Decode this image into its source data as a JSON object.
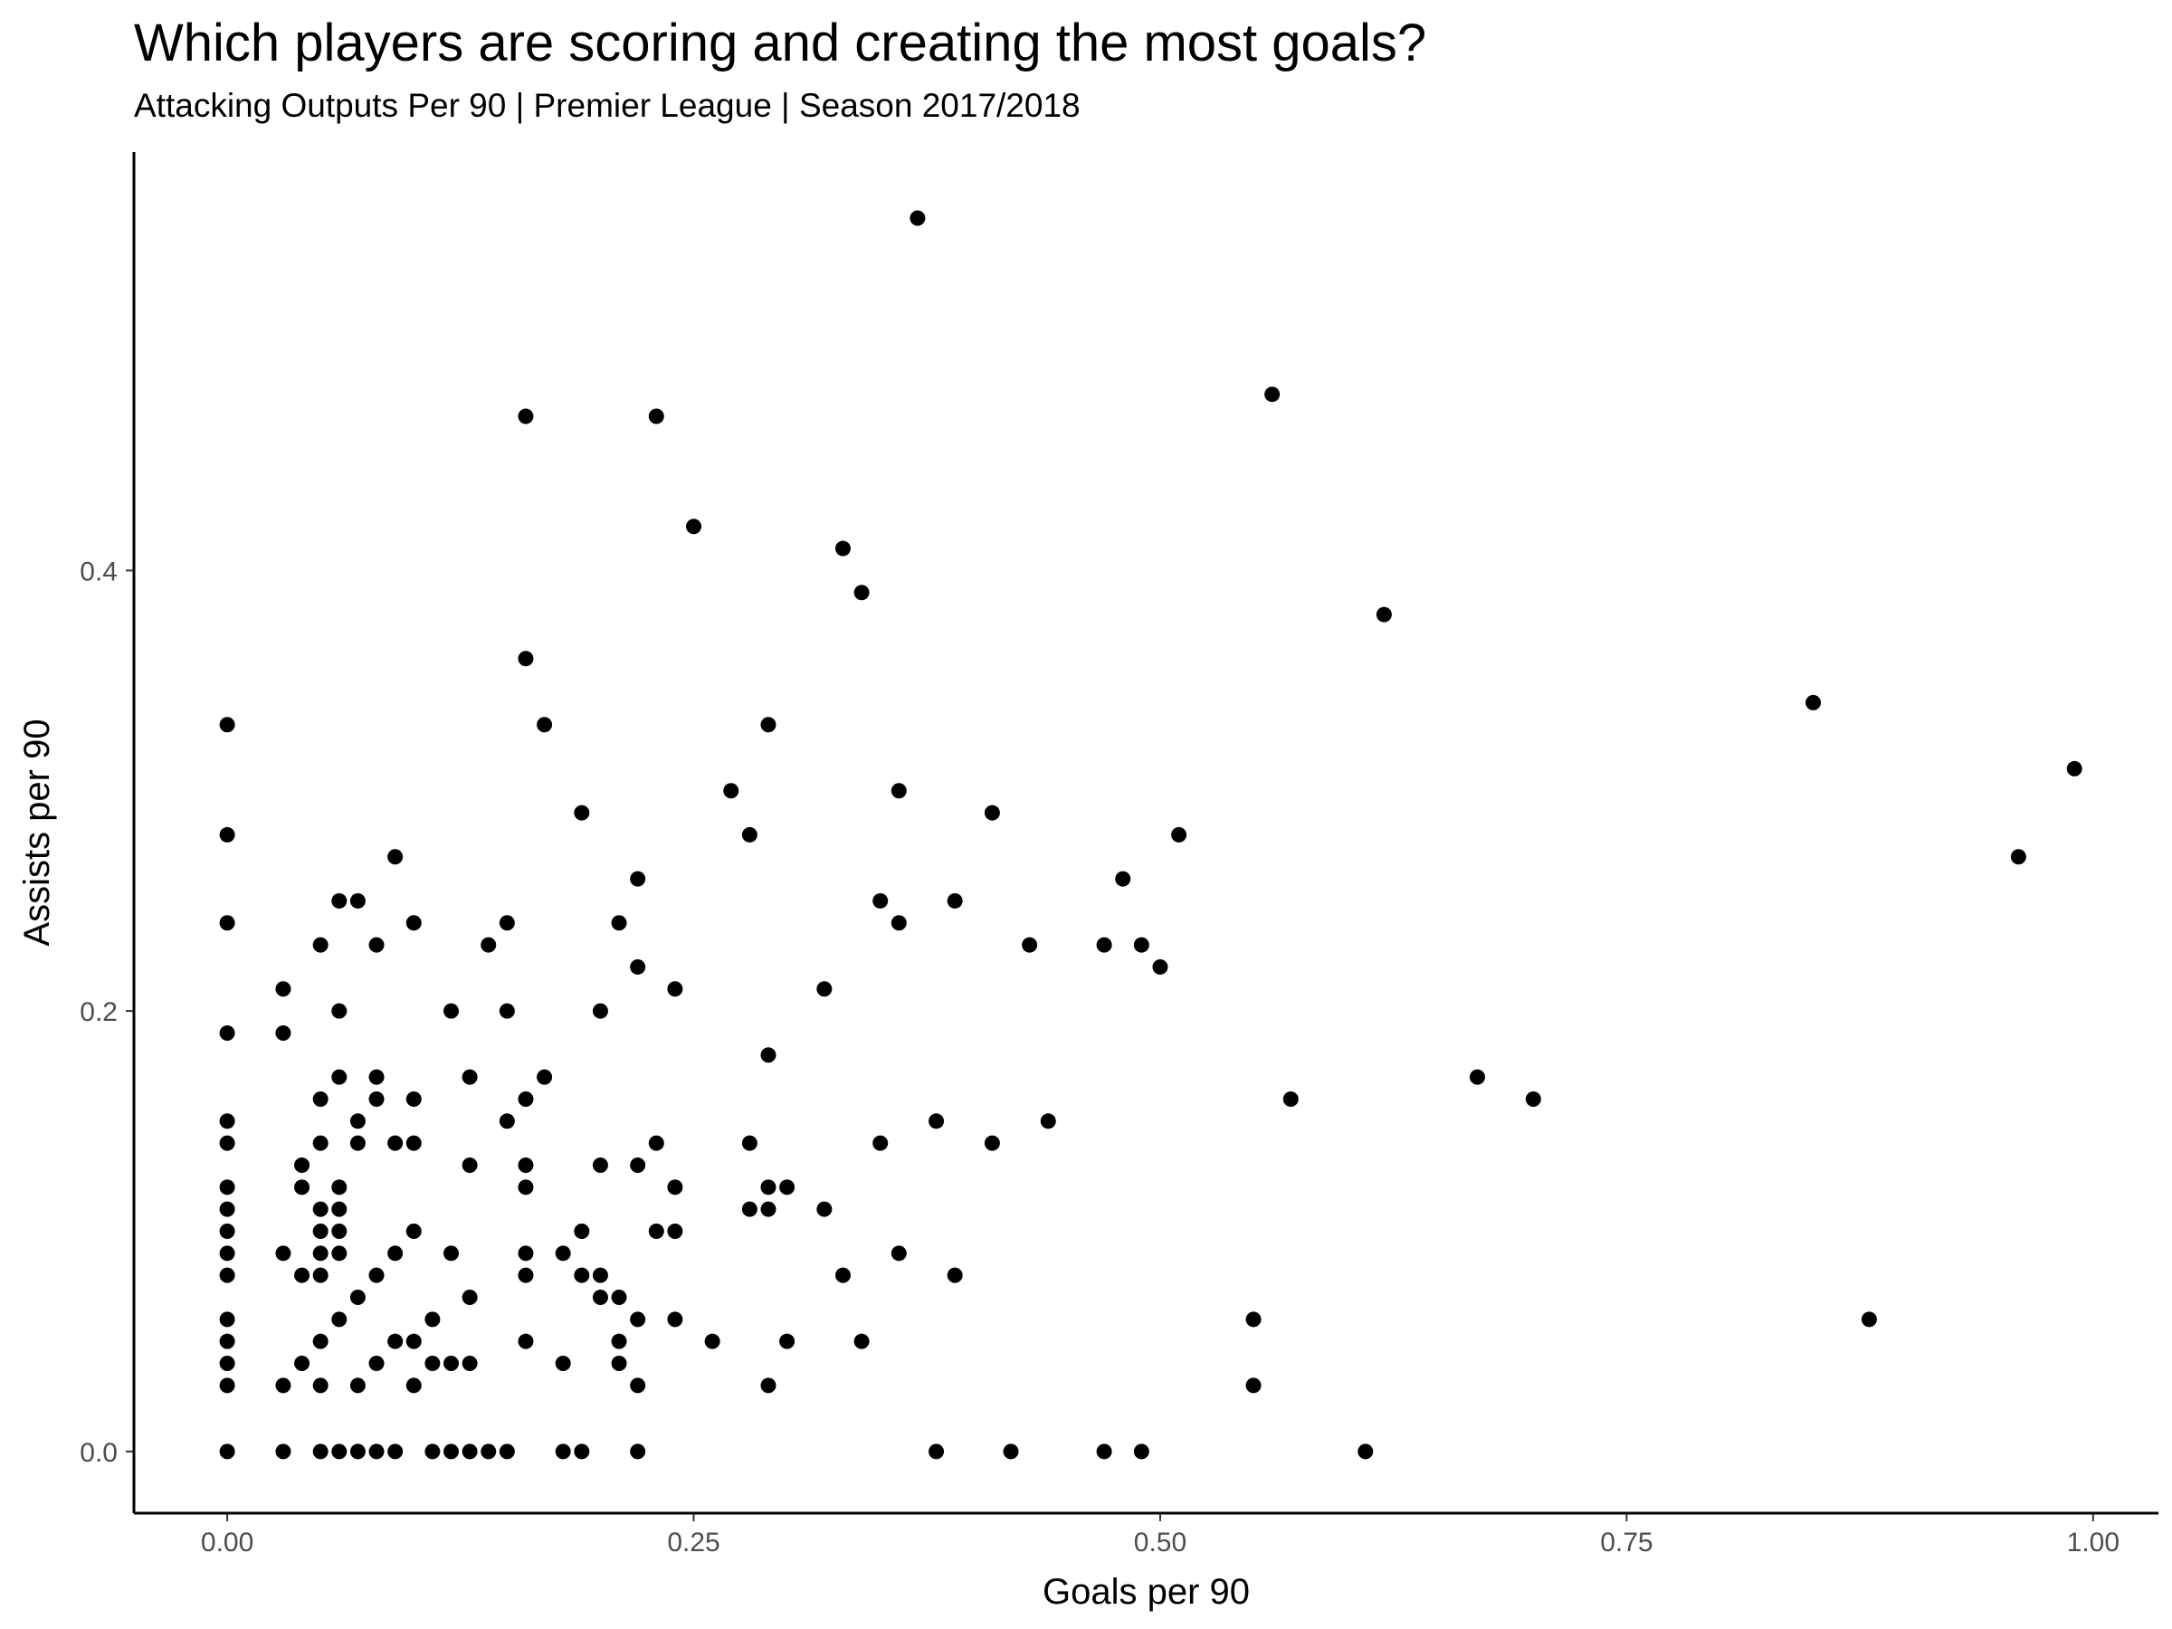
{
  "chart_data": {
    "type": "scatter",
    "title": "Which players are scoring and creating the most goals?",
    "subtitle": "Attacking Outputs Per 90 | Premier League | Season 2017/2018",
    "xlabel": "Goals per 90",
    "ylabel": "Assists per 90",
    "xlim": [
      -0.05,
      1.035
    ],
    "ylim": [
      -0.028,
      0.59
    ],
    "x_ticks": [
      0.0,
      0.25,
      0.5,
      0.75,
      1.0
    ],
    "x_tick_labels": [
      "0.00",
      "0.25",
      "0.50",
      "0.75",
      "1.00"
    ],
    "y_ticks": [
      0.0,
      0.2,
      0.4
    ],
    "y_tick_labels": [
      "0.0",
      "0.2",
      "0.4"
    ],
    "grid": false,
    "point_color": "#000000",
    "points": [
      [
        0.37,
        0.56
      ],
      [
        0.56,
        0.48
      ],
      [
        0.16,
        0.47
      ],
      [
        0.23,
        0.47
      ],
      [
        0.25,
        0.42
      ],
      [
        0.33,
        0.41
      ],
      [
        0.34,
        0.39
      ],
      [
        0.62,
        0.38
      ],
      [
        0.16,
        0.36
      ],
      [
        0.85,
        0.34
      ],
      [
        0.0,
        0.33
      ],
      [
        0.17,
        0.33
      ],
      [
        0.29,
        0.33
      ],
      [
        0.99,
        0.31
      ],
      [
        0.27,
        0.3
      ],
      [
        0.36,
        0.3
      ],
      [
        0.19,
        0.29
      ],
      [
        0.41,
        0.29
      ],
      [
        0.0,
        0.28
      ],
      [
        0.28,
        0.28
      ],
      [
        0.51,
        0.28
      ],
      [
        0.09,
        0.27
      ],
      [
        0.96,
        0.27
      ],
      [
        0.22,
        0.26
      ],
      [
        0.48,
        0.26
      ],
      [
        0.06,
        0.25
      ],
      [
        0.07,
        0.25
      ],
      [
        0.35,
        0.25
      ],
      [
        0.39,
        0.25
      ],
      [
        0.0,
        0.24
      ],
      [
        0.1,
        0.24
      ],
      [
        0.15,
        0.24
      ],
      [
        0.21,
        0.24
      ],
      [
        0.36,
        0.24
      ],
      [
        0.05,
        0.23
      ],
      [
        0.08,
        0.23
      ],
      [
        0.14,
        0.23
      ],
      [
        0.43,
        0.23
      ],
      [
        0.47,
        0.23
      ],
      [
        0.49,
        0.23
      ],
      [
        0.22,
        0.22
      ],
      [
        0.5,
        0.22
      ],
      [
        0.03,
        0.21
      ],
      [
        0.24,
        0.21
      ],
      [
        0.32,
        0.21
      ],
      [
        0.06,
        0.2
      ],
      [
        0.12,
        0.2
      ],
      [
        0.15,
        0.2
      ],
      [
        0.2,
        0.2
      ],
      [
        0.0,
        0.19
      ],
      [
        0.03,
        0.19
      ],
      [
        0.29,
        0.18
      ],
      [
        0.06,
        0.17
      ],
      [
        0.08,
        0.17
      ],
      [
        0.13,
        0.17
      ],
      [
        0.17,
        0.17
      ],
      [
        0.67,
        0.17
      ],
      [
        0.05,
        0.16
      ],
      [
        0.08,
        0.16
      ],
      [
        0.1,
        0.16
      ],
      [
        0.16,
        0.16
      ],
      [
        0.57,
        0.16
      ],
      [
        0.7,
        0.16
      ],
      [
        0.0,
        0.15
      ],
      [
        0.07,
        0.15
      ],
      [
        0.15,
        0.15
      ],
      [
        0.38,
        0.15
      ],
      [
        0.44,
        0.15
      ],
      [
        0.0,
        0.14
      ],
      [
        0.05,
        0.14
      ],
      [
        0.07,
        0.14
      ],
      [
        0.09,
        0.14
      ],
      [
        0.1,
        0.14
      ],
      [
        0.23,
        0.14
      ],
      [
        0.28,
        0.14
      ],
      [
        0.35,
        0.14
      ],
      [
        0.41,
        0.14
      ],
      [
        0.04,
        0.13
      ],
      [
        0.13,
        0.13
      ],
      [
        0.16,
        0.13
      ],
      [
        0.2,
        0.13
      ],
      [
        0.22,
        0.13
      ],
      [
        0.0,
        0.12
      ],
      [
        0.04,
        0.12
      ],
      [
        0.06,
        0.12
      ],
      [
        0.16,
        0.12
      ],
      [
        0.24,
        0.12
      ],
      [
        0.29,
        0.12
      ],
      [
        0.3,
        0.12
      ],
      [
        0.0,
        0.11
      ],
      [
        0.05,
        0.11
      ],
      [
        0.06,
        0.11
      ],
      [
        0.28,
        0.11
      ],
      [
        0.29,
        0.11
      ],
      [
        0.32,
        0.11
      ],
      [
        0.0,
        0.1
      ],
      [
        0.05,
        0.1
      ],
      [
        0.06,
        0.1
      ],
      [
        0.1,
        0.1
      ],
      [
        0.19,
        0.1
      ],
      [
        0.23,
        0.1
      ],
      [
        0.24,
        0.1
      ],
      [
        0.0,
        0.09
      ],
      [
        0.03,
        0.09
      ],
      [
        0.05,
        0.09
      ],
      [
        0.06,
        0.09
      ],
      [
        0.09,
        0.09
      ],
      [
        0.12,
        0.09
      ],
      [
        0.16,
        0.09
      ],
      [
        0.18,
        0.09
      ],
      [
        0.36,
        0.09
      ],
      [
        0.0,
        0.08
      ],
      [
        0.04,
        0.08
      ],
      [
        0.05,
        0.08
      ],
      [
        0.08,
        0.08
      ],
      [
        0.16,
        0.08
      ],
      [
        0.19,
        0.08
      ],
      [
        0.2,
        0.08
      ],
      [
        0.33,
        0.08
      ],
      [
        0.39,
        0.08
      ],
      [
        0.07,
        0.07
      ],
      [
        0.13,
        0.07
      ],
      [
        0.2,
        0.07
      ],
      [
        0.21,
        0.07
      ],
      [
        0.0,
        0.06
      ],
      [
        0.06,
        0.06
      ],
      [
        0.11,
        0.06
      ],
      [
        0.22,
        0.06
      ],
      [
        0.24,
        0.06
      ],
      [
        0.55,
        0.06
      ],
      [
        0.88,
        0.06
      ],
      [
        0.0,
        0.05
      ],
      [
        0.05,
        0.05
      ],
      [
        0.09,
        0.05
      ],
      [
        0.1,
        0.05
      ],
      [
        0.16,
        0.05
      ],
      [
        0.21,
        0.05
      ],
      [
        0.26,
        0.05
      ],
      [
        0.3,
        0.05
      ],
      [
        0.34,
        0.05
      ],
      [
        0.0,
        0.04
      ],
      [
        0.04,
        0.04
      ],
      [
        0.08,
        0.04
      ],
      [
        0.11,
        0.04
      ],
      [
        0.12,
        0.04
      ],
      [
        0.13,
        0.04
      ],
      [
        0.18,
        0.04
      ],
      [
        0.21,
        0.04
      ],
      [
        0.0,
        0.03
      ],
      [
        0.03,
        0.03
      ],
      [
        0.05,
        0.03
      ],
      [
        0.07,
        0.03
      ],
      [
        0.1,
        0.03
      ],
      [
        0.22,
        0.03
      ],
      [
        0.29,
        0.03
      ],
      [
        0.55,
        0.03
      ],
      [
        0.0,
        0.0
      ],
      [
        0.03,
        0.0
      ],
      [
        0.05,
        0.0
      ],
      [
        0.06,
        0.0
      ],
      [
        0.07,
        0.0
      ],
      [
        0.08,
        0.0
      ],
      [
        0.09,
        0.0
      ],
      [
        0.11,
        0.0
      ],
      [
        0.12,
        0.0
      ],
      [
        0.13,
        0.0
      ],
      [
        0.14,
        0.0
      ],
      [
        0.15,
        0.0
      ],
      [
        0.18,
        0.0
      ],
      [
        0.19,
        0.0
      ],
      [
        0.22,
        0.0
      ],
      [
        0.38,
        0.0
      ],
      [
        0.42,
        0.0
      ],
      [
        0.47,
        0.0
      ],
      [
        0.49,
        0.0
      ],
      [
        0.61,
        0.0
      ]
    ]
  }
}
